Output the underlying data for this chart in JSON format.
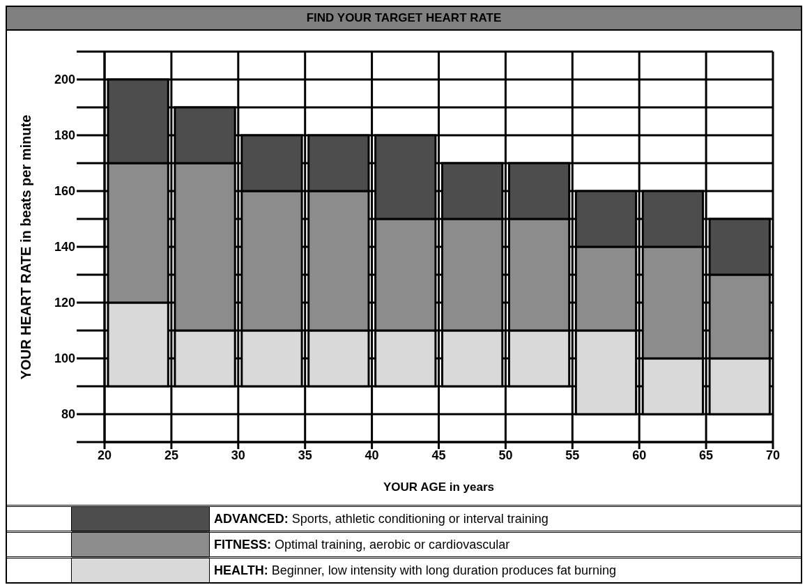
{
  "chart_data": {
    "type": "bar",
    "title": "FIND YOUR TARGET HEART RATE",
    "xlabel": "YOUR AGE in years",
    "ylabel": "YOUR HEART RATE in beats per minute",
    "x": [
      22.5,
      27.5,
      32.5,
      37.5,
      42.5,
      47.5,
      52.5,
      57.5,
      62.5,
      67.5
    ],
    "series": [
      {
        "name": "HEALTH: Beginner, low intensity with long duration produces fat burning",
        "color": "#d9d9d9",
        "base": [
          90,
          90,
          90,
          90,
          90,
          90,
          90,
          80,
          80,
          80
        ],
        "values": [
          30,
          20,
          20,
          20,
          20,
          20,
          20,
          30,
          20,
          20
        ]
      },
      {
        "name": "FITNESS: Optimal training, aerobic or cardiovascular",
        "color": "#8c8c8c",
        "base": [
          120,
          110,
          110,
          110,
          110,
          110,
          110,
          110,
          100,
          100
        ],
        "values": [
          50,
          60,
          50,
          50,
          40,
          40,
          40,
          30,
          40,
          30
        ]
      },
      {
        "name": "ADVANCED: Sports, athletic conditioning or interval training",
        "color": "#4d4d4d",
        "base": [
          170,
          170,
          160,
          160,
          150,
          150,
          150,
          140,
          140,
          130
        ],
        "values": [
          30,
          20,
          20,
          20,
          30,
          20,
          20,
          20,
          20,
          20
        ]
      }
    ],
    "xlim": [
      20,
      70
    ],
    "xticks": [
      20,
      25,
      30,
      35,
      40,
      45,
      50,
      55,
      60,
      65,
      70
    ],
    "ylim": [
      70,
      210
    ],
    "yticks": [
      {
        "value": 70,
        "label": null
      },
      80,
      {
        "value": 90,
        "label": null
      },
      100,
      {
        "value": 110,
        "label": null
      },
      120,
      {
        "value": 130,
        "label": null
      },
      140,
      {
        "value": 150,
        "label": null
      },
      160,
      {
        "value": 170,
        "label": null
      },
      180,
      {
        "value": 190,
        "label": null
      },
      200,
      {
        "value": 210,
        "label": null
      }
    ],
    "grid": true,
    "legend": "bottom"
  }
}
